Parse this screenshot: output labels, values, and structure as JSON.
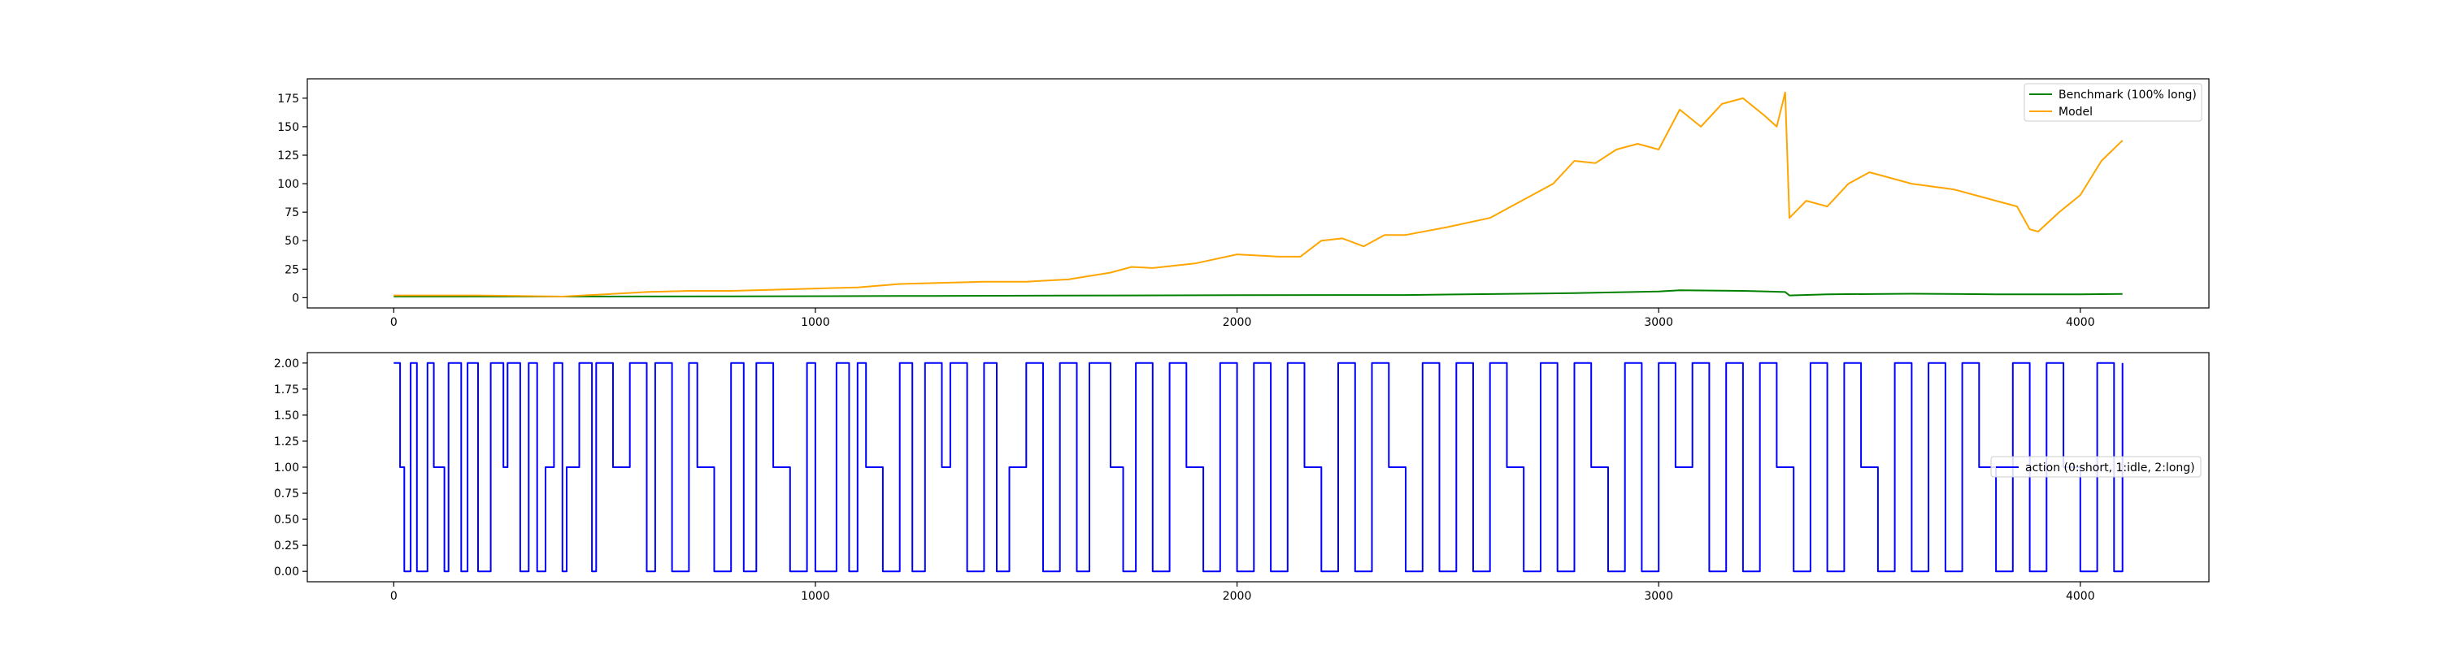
{
  "chart_data": [
    {
      "type": "line",
      "xlim": [
        -205,
        4305
      ],
      "ylim": [
        -9,
        192
      ],
      "x_ticks": [
        0,
        1000,
        2000,
        3000,
        4000
      ],
      "x_tick_labels": [
        "0",
        "1000",
        "2000",
        "3000",
        "4000"
      ],
      "y_ticks": [
        0,
        25,
        50,
        75,
        100,
        125,
        150,
        175
      ],
      "y_tick_labels": [
        "0",
        "25",
        "50",
        "75",
        "100",
        "125",
        "150",
        "175"
      ],
      "legend_position": "top-right",
      "series": [
        {
          "name": "Benchmark (100% long)",
          "color": "#008000",
          "x": [
            0,
            400,
            800,
            1200,
            1600,
            2000,
            2400,
            2800,
            3000,
            3050,
            3200,
            3300,
            3310,
            3400,
            3600,
            3800,
            4000,
            4100
          ],
          "y": [
            1,
            1,
            1.2,
            1.5,
            1.8,
            2.2,
            2.3,
            4,
            5.5,
            6.5,
            6,
            5,
            2,
            3,
            3.5,
            3,
            3,
            3.3
          ]
        },
        {
          "name": "Model",
          "color": "#ffa500",
          "x": [
            0,
            200,
            400,
            500,
            600,
            700,
            800,
            900,
            1000,
            1100,
            1200,
            1300,
            1400,
            1500,
            1600,
            1700,
            1750,
            1800,
            1900,
            2000,
            2100,
            2150,
            2200,
            2250,
            2300,
            2350,
            2400,
            2500,
            2600,
            2650,
            2700,
            2750,
            2800,
            2850,
            2900,
            2950,
            3000,
            3050,
            3100,
            3150,
            3200,
            3250,
            3280,
            3300,
            3310,
            3350,
            3400,
            3450,
            3500,
            3600,
            3700,
            3750,
            3800,
            3850,
            3880,
            3900,
            3950,
            4000,
            4050,
            4100
          ],
          "y": [
            2,
            2,
            1,
            3,
            5,
            6,
            6,
            7,
            8,
            9,
            12,
            13,
            14,
            14,
            16,
            22,
            27,
            26,
            30,
            38,
            36,
            36,
            50,
            52,
            45,
            55,
            55,
            62,
            70,
            80,
            90,
            100,
            120,
            118,
            130,
            135,
            130,
            165,
            150,
            170,
            175,
            160,
            150,
            180,
            70,
            85,
            80,
            100,
            110,
            100,
            95,
            90,
            85,
            80,
            60,
            58,
            75,
            90,
            120,
            138
          ]
        }
      ]
    },
    {
      "type": "line",
      "xlim": [
        -205,
        4305
      ],
      "ylim": [
        -0.1,
        2.1
      ],
      "x_ticks": [
        0,
        1000,
        2000,
        3000,
        4000
      ],
      "x_tick_labels": [
        "0",
        "1000",
        "2000",
        "3000",
        "4000"
      ],
      "y_ticks": [
        0,
        0.25,
        0.5,
        0.75,
        1,
        1.25,
        1.5,
        1.75,
        2
      ],
      "y_tick_labels": [
        "0.00",
        "0.25",
        "0.50",
        "0.75",
        "1.00",
        "1.25",
        "1.50",
        "1.75",
        "2.00"
      ],
      "legend_position": "center-right",
      "series": [
        {
          "name": "action (0:short, 1:idle, 2:long)",
          "color": "#0000ff",
          "step": true,
          "x": [
            0,
            15,
            25,
            40,
            55,
            80,
            95,
            120,
            130,
            160,
            175,
            200,
            230,
            260,
            270,
            300,
            320,
            340,
            360,
            380,
            400,
            410,
            440,
            470,
            480,
            520,
            560,
            600,
            620,
            660,
            700,
            720,
            760,
            800,
            830,
            860,
            900,
            940,
            980,
            1000,
            1050,
            1080,
            1100,
            1120,
            1160,
            1200,
            1230,
            1260,
            1300,
            1320,
            1360,
            1400,
            1430,
            1460,
            1500,
            1540,
            1580,
            1620,
            1650,
            1700,
            1730,
            1760,
            1800,
            1840,
            1880,
            1920,
            1960,
            2000,
            2040,
            2080,
            2120,
            2160,
            2200,
            2240,
            2280,
            2320,
            2360,
            2400,
            2440,
            2480,
            2520,
            2560,
            2600,
            2640,
            2680,
            2720,
            2760,
            2800,
            2840,
            2880,
            2920,
            2960,
            3000,
            3040,
            3080,
            3120,
            3160,
            3200,
            3240,
            3280,
            3320,
            3360,
            3400,
            3440,
            3480,
            3520,
            3560,
            3600,
            3640,
            3680,
            3720,
            3760,
            3800,
            3840,
            3880,
            3920,
            3960,
            4000,
            4040,
            4080,
            4100
          ],
          "y": [
            2,
            1,
            0,
            2,
            0,
            2,
            1,
            0,
            2,
            0,
            2,
            0,
            2,
            1,
            2,
            0,
            2,
            0,
            1,
            2,
            0,
            1,
            2,
            0,
            2,
            1,
            2,
            0,
            2,
            0,
            2,
            1,
            0,
            2,
            0,
            2,
            1,
            0,
            2,
            0,
            2,
            0,
            2,
            1,
            0,
            2,
            0,
            2,
            1,
            2,
            0,
            2,
            0,
            1,
            2,
            0,
            2,
            0,
            2,
            1,
            0,
            2,
            0,
            2,
            1,
            0,
            2,
            0,
            2,
            0,
            2,
            1,
            0,
            2,
            0,
            2,
            1,
            0,
            2,
            0,
            2,
            0,
            2,
            1,
            0,
            2,
            0,
            2,
            1,
            0,
            2,
            0,
            2,
            1,
            2,
            0,
            2,
            0,
            2,
            1,
            0,
            2,
            0,
            2,
            1,
            0,
            2,
            0,
            2,
            0,
            2,
            1,
            0,
            2,
            0,
            2,
            1,
            0,
            2,
            0,
            2
          ]
        }
      ]
    }
  ]
}
